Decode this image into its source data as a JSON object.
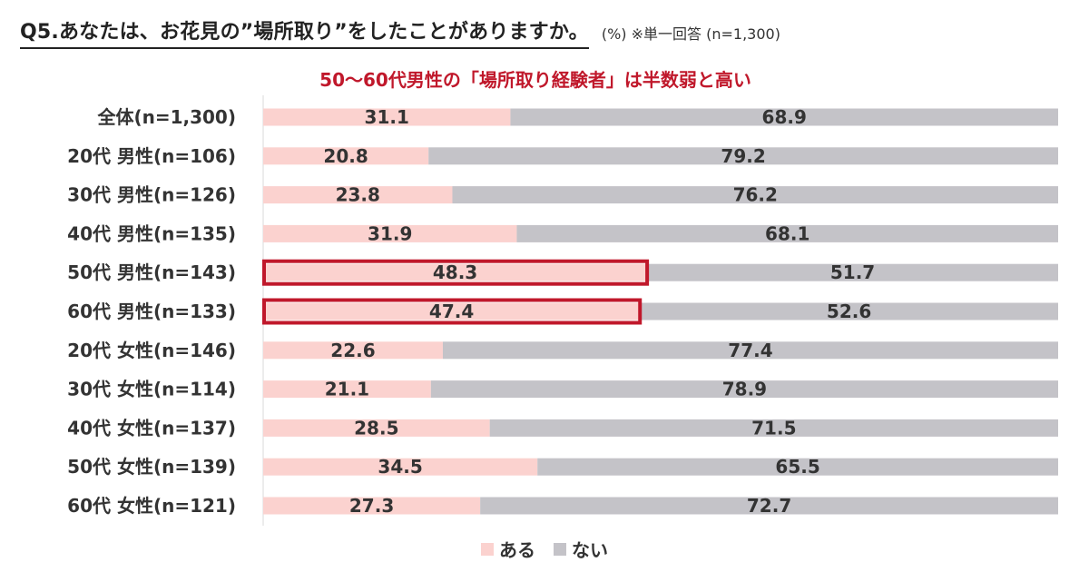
{
  "title": "Q5.あなたは、お花見の”場所取り”をしたことがありますか。",
  "title_note": "(%) ※単一回答 (n=1,300)",
  "headline": "50～60代男性の「場所取り経験者」は半数弱と高い",
  "colors": {
    "aru": "#fbd2cf",
    "nai": "#c4c3c8",
    "highlight": "#c0182b",
    "axis": "#d9d9d9",
    "label": "#333333"
  },
  "chart_data": {
    "type": "bar",
    "orientation": "horizontal",
    "stacked": true,
    "xlim": [
      0,
      100
    ],
    "categories": [
      "全体(n=1,300)",
      "20代 男性(n=106)",
      "30代 男性(n=126)",
      "40代 男性(n=135)",
      "50代 男性(n=143)",
      "60代 男性(n=133)",
      "20代 女性(n=146)",
      "30代 女性(n=114)",
      "40代 女性(n=137)",
      "50代 女性(n=139)",
      "60代 女性(n=121)"
    ],
    "series": [
      {
        "name": "ある",
        "values": [
          31.1,
          20.8,
          23.8,
          31.9,
          48.3,
          47.4,
          22.6,
          21.1,
          28.5,
          34.5,
          27.3
        ]
      },
      {
        "name": "ない",
        "values": [
          68.9,
          79.2,
          76.2,
          68.1,
          51.7,
          52.6,
          77.4,
          78.9,
          71.5,
          65.5,
          72.7
        ]
      }
    ],
    "highlighted_categories": [
      "50代 男性(n=143)",
      "60代 男性(n=133)"
    ],
    "legend_position": "bottom",
    "grid": false
  },
  "legend": {
    "items": [
      "ある",
      "ない"
    ]
  }
}
